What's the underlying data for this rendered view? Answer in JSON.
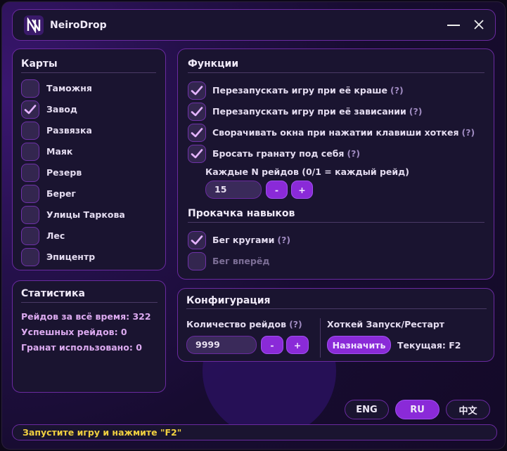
{
  "app": {
    "title": "NeiroDrop",
    "logo": "N-logo",
    "minimize_icon": "minimize-icon",
    "close_icon": "close-icon"
  },
  "maps": {
    "title": "Карты",
    "items": [
      {
        "label": "Таможня",
        "checked": false
      },
      {
        "label": "Завод",
        "checked": true
      },
      {
        "label": "Развязка",
        "checked": false
      },
      {
        "label": "Маяк",
        "checked": false
      },
      {
        "label": "Резерв",
        "checked": false
      },
      {
        "label": "Берег",
        "checked": false
      },
      {
        "label": "Улицы Таркова",
        "checked": false
      },
      {
        "label": "Лес",
        "checked": false
      },
      {
        "label": "Эпицентр",
        "checked": false
      }
    ]
  },
  "stats": {
    "title": "Статистика",
    "total": "Рейдов за всё время: 322",
    "success": "Успешных рейдов: 0",
    "grenades": "Гранат использовано: 0"
  },
  "functions": {
    "title": "Функции",
    "items": [
      {
        "label": "Перезапускать игру при её краше",
        "help": "(?)",
        "checked": true
      },
      {
        "label": "Перезапускать игру при её зависании",
        "help": "(?)",
        "checked": true
      },
      {
        "label": "Сворачивать окна при нажатии клавиши хоткея",
        "help": "(?)",
        "checked": true
      },
      {
        "label": "Бросать гранату под себя",
        "help": "(?)",
        "checked": true
      }
    ],
    "every_n_label": "Каждые N рейдов (0/1 = каждый рейд)",
    "every_n_value": "15",
    "minus": "-",
    "plus": "+"
  },
  "skills": {
    "title": "Прокачка навыков",
    "items": [
      {
        "label": "Бег кругами",
        "help": "(?)",
        "checked": true
      },
      {
        "label": "Бег вперёд",
        "checked": false,
        "disabled": true
      }
    ]
  },
  "config": {
    "title": "Конфигурация",
    "raids_label": "Количество рейдов",
    "raids_help": "(?)",
    "raids_value": "9999",
    "minus": "-",
    "plus": "+",
    "hotkey_label": "Хоткей Запуск/Рестарт",
    "assign": "Назначить",
    "current": "Текущая: F2"
  },
  "languages": [
    {
      "label": "ENG",
      "active": false
    },
    {
      "label": "RU",
      "active": true
    },
    {
      "label": "中文",
      "active": false
    }
  ],
  "status": "Запустите игру и нажмите \"F2\"",
  "colors": {
    "accent": "#8a2ad8",
    "border": "#6a2aa0",
    "status": "#f0d040",
    "stats": "#dcaaf0"
  }
}
